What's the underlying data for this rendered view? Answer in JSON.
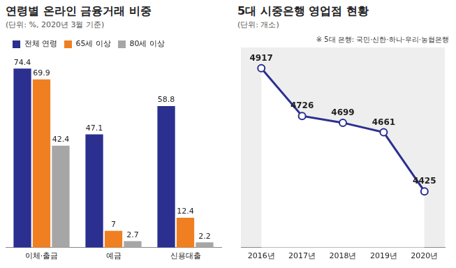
{
  "chart_data": [
    {
      "type": "bar",
      "title": "연령별 온라인 금융거래 비중",
      "subtitle": "(단위: %, 2020년 3월 기준)",
      "categories": [
        "이체·출금",
        "예금",
        "신용대출"
      ],
      "series": [
        {
          "name": "전체 연령",
          "color": "#2b2f8f",
          "values": [
            74.4,
            47.1,
            58.8
          ]
        },
        {
          "name": "65세 이상",
          "color": "#f07f22",
          "values": [
            69.9,
            7,
            12.4
          ]
        },
        {
          "name": "80세 이상",
          "color": "#a6a6a6",
          "values": [
            42.4,
            2.7,
            2.2
          ]
        }
      ],
      "ylim": [
        0,
        80
      ],
      "grid": false,
      "legend": "top-left",
      "data_labels": true,
      "tick_labels": "x"
    },
    {
      "type": "line",
      "title": "5대 시중은행 영업점 현황",
      "subtitle": "(단위: 개소)",
      "annotation": "※ 5대 은행: 국민·신한·하나·우리·농협은행",
      "categories": [
        "2016년",
        "2017년",
        "2018년",
        "2019년",
        "2020년"
      ],
      "values": [
        4917,
        4726,
        4699,
        4661,
        4425
      ],
      "color": "#2b2f8f",
      "marker": "circle",
      "ylim": [
        4200,
        5000
      ],
      "grid": false,
      "data_labels": true,
      "tick_labels": "x"
    }
  ]
}
